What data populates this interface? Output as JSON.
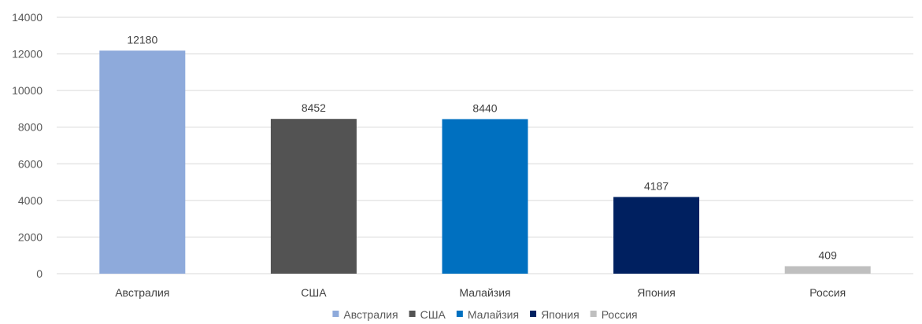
{
  "chart_data": {
    "type": "bar",
    "categories": [
      "Австралия",
      "США",
      "Малайзия",
      "Япония",
      "Россия"
    ],
    "values": [
      12180,
      8452,
      8440,
      4187,
      409
    ],
    "colors": [
      "#8eaadb",
      "#535353",
      "#0070c0",
      "#002060",
      "#bfbfbf"
    ],
    "ylim": [
      0,
      14000
    ],
    "yticks": [
      0,
      2000,
      4000,
      6000,
      8000,
      10000,
      12000,
      14000
    ],
    "grid": true,
    "legend": {
      "position": "bottom",
      "entries": [
        "Австралия",
        "США",
        "Малайзия",
        "Япония",
        "Россия"
      ]
    },
    "data_labels": true
  }
}
